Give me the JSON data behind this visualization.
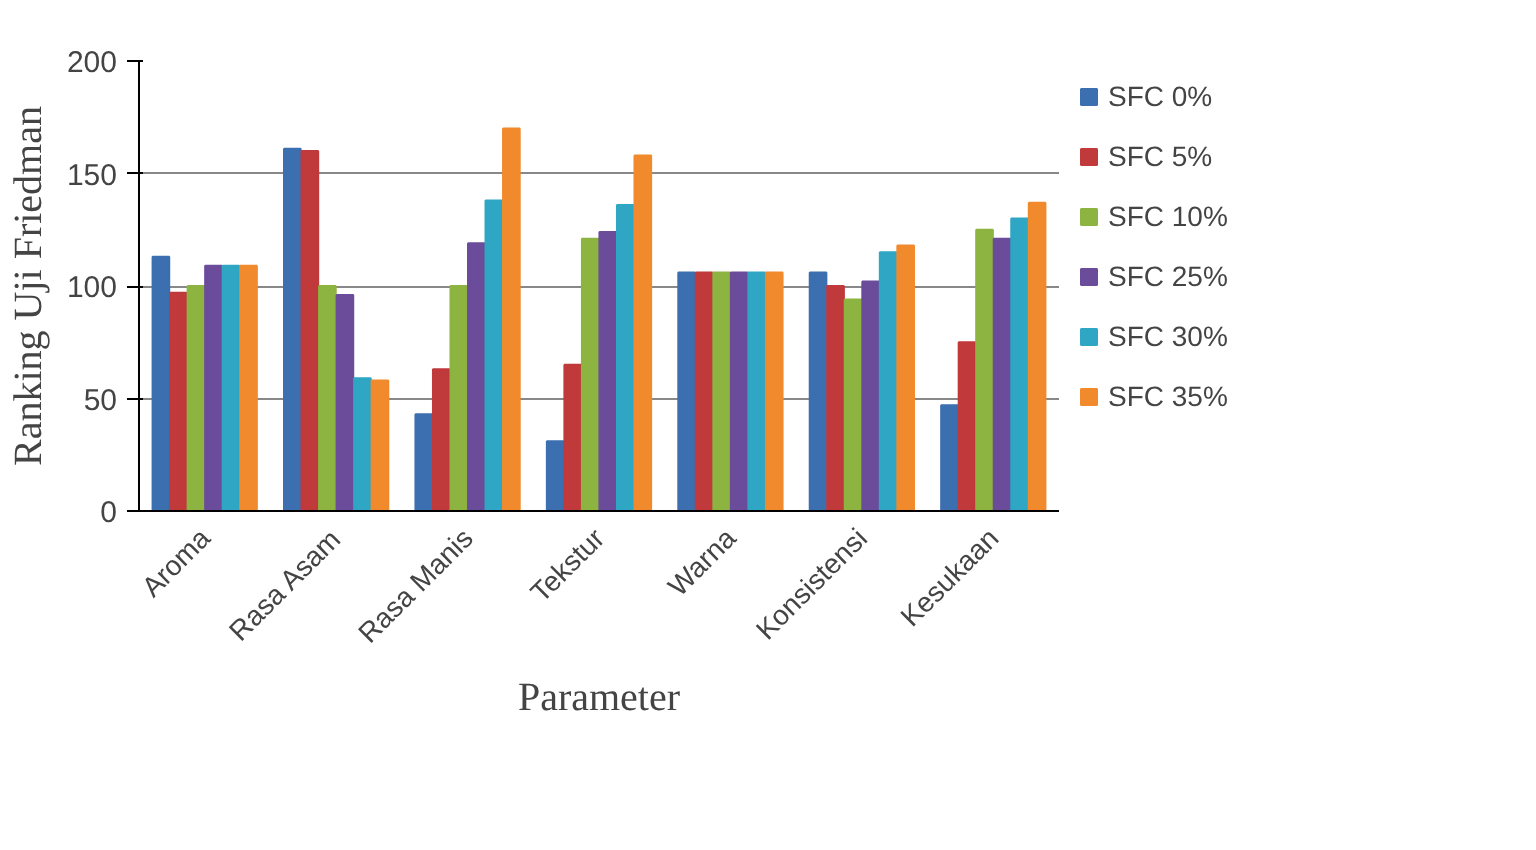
{
  "chart_data": {
    "type": "bar",
    "xlabel": "Parameter",
    "ylabel": "Ranking Uji Friedman",
    "categories": [
      "Aroma",
      "Rasa Asam",
      "Rasa Manis",
      "Tekstur",
      "Warna",
      "Konsistensi",
      "Kesukaan"
    ],
    "ylim": [
      0,
      200
    ],
    "yticks": [
      0,
      50,
      100,
      150,
      200
    ],
    "grid": "y",
    "legend": "right",
    "series": [
      {
        "name": "SFC 0%",
        "color": "#3b6fb0",
        "values": [
          113,
          161,
          43,
          31,
          106,
          106,
          47
        ]
      },
      {
        "name": "SFC 5%",
        "color": "#c0393b",
        "values": [
          97,
          160,
          63,
          65,
          106,
          100,
          75
        ]
      },
      {
        "name": "SFC 10%",
        "color": "#8db440",
        "values": [
          100,
          100,
          100,
          121,
          106,
          94,
          125
        ]
      },
      {
        "name": "SFC 25%",
        "color": "#6b4c9a",
        "values": [
          109,
          96,
          119,
          124,
          106,
          102,
          121
        ]
      },
      {
        "name": "SFC 30%",
        "color": "#2ea6c4",
        "values": [
          109,
          59,
          138,
          136,
          106,
          115,
          130
        ]
      },
      {
        "name": "SFC 35%",
        "color": "#f08a2c",
        "values": [
          109,
          58,
          170,
          158,
          106,
          118,
          137
        ]
      }
    ]
  }
}
